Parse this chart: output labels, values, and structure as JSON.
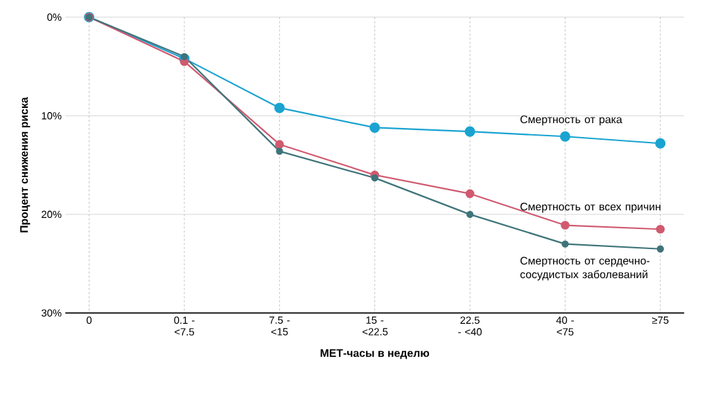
{
  "chart_data": {
    "type": "line",
    "xlabel": "МЕТ-часы в неделю",
    "ylabel": "Процент снижения риска",
    "categories": [
      "0",
      "0.1 - <7.5",
      "7.5 - <15",
      "15 - <22.5",
      "22.5 - <40",
      "40 - <75",
      "≥75"
    ],
    "ylim": [
      30,
      0
    ],
    "yticks": [
      {
        "value": 0,
        "label": "0%"
      },
      {
        "value": 10,
        "label": "10%"
      },
      {
        "value": 20,
        "label": "20%"
      },
      {
        "value": 30,
        "label": "30%"
      }
    ],
    "grid": true,
    "legend": false,
    "marker": "circle",
    "line_style": "solid",
    "series": [
      {
        "name": "Смертность от рака",
        "color": "#1aa3d1",
        "values": [
          0,
          4.2,
          9.2,
          11.2,
          11.6,
          12.1,
          12.8
        ]
      },
      {
        "name": "Смертность от всех причин",
        "color": "#d05a70",
        "values": [
          0,
          4.5,
          12.9,
          16.0,
          17.9,
          21.1,
          21.5
        ]
      },
      {
        "name": "Смертность от сердечно-сосудистых заболеваний",
        "color": "#3e747a",
        "values": [
          0,
          4.0,
          13.6,
          16.3,
          20.0,
          23.0,
          23.5
        ]
      }
    ]
  }
}
